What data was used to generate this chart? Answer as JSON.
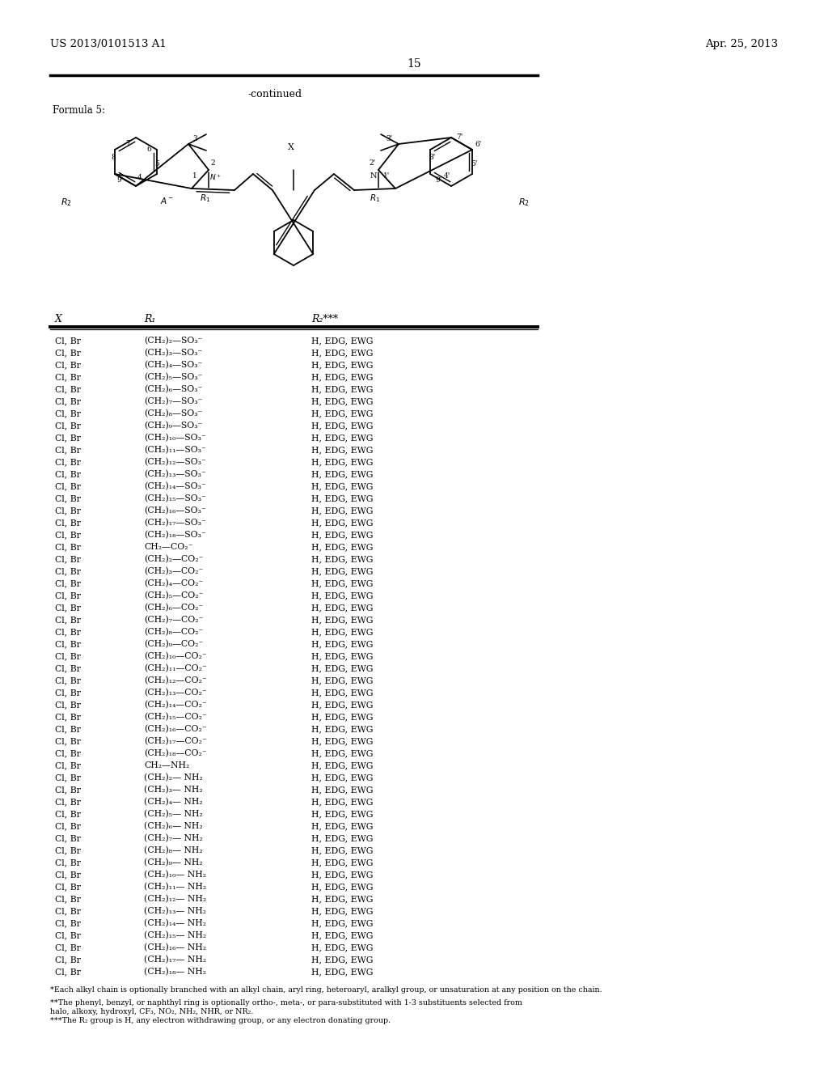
{
  "background_color": "#ffffff",
  "header_left": "US 2013/0101513 A1",
  "header_right": "Apr. 25, 2013",
  "page_number": "15",
  "continued_text": "-continued",
  "formula_label": "Formula 5:",
  "table_headers": [
    "X",
    "R₁",
    "R₂***"
  ],
  "table_rows": [
    [
      "Cl, Br",
      "(CH₂)₂—SO₃⁻",
      "H, EDG, EWG"
    ],
    [
      "Cl, Br",
      "(CH₂)₃—SO₃⁻",
      "H, EDG, EWG"
    ],
    [
      "Cl, Br",
      "(CH₂)₄—SO₃⁻",
      "H, EDG, EWG"
    ],
    [
      "Cl, Br",
      "(CH₂)₅—SO₃⁻",
      "H, EDG, EWG"
    ],
    [
      "Cl, Br",
      "(CH₂)₆—SO₃⁻",
      "H, EDG, EWG"
    ],
    [
      "Cl, Br",
      "(CH₂)₇—SO₃⁻",
      "H, EDG, EWG"
    ],
    [
      "Cl, Br",
      "(CH₂)₈—SO₃⁻",
      "H, EDG, EWG"
    ],
    [
      "Cl, Br",
      "(CH₂)₉—SO₃⁻",
      "H, EDG, EWG"
    ],
    [
      "Cl, Br",
      "(CH₂)₁₀—SO₃⁻",
      "H, EDG, EWG"
    ],
    [
      "Cl, Br",
      "(CH₂)₁₁—SO₃⁻",
      "H, EDG, EWG"
    ],
    [
      "Cl, Br",
      "(CH₂)₁₂—SO₃⁻",
      "H, EDG, EWG"
    ],
    [
      "Cl, Br",
      "(CH₂)₁₃—SO₃⁻",
      "H, EDG, EWG"
    ],
    [
      "Cl, Br",
      "(CH₂)₁₄—SO₃⁻",
      "H, EDG, EWG"
    ],
    [
      "Cl, Br",
      "(CH₂)₁₅—SO₃⁻",
      "H, EDG, EWG"
    ],
    [
      "Cl, Br",
      "(CH₂)₁₆—SO₃⁻",
      "H, EDG, EWG"
    ],
    [
      "Cl, Br",
      "(CH₂)₁₇—SO₃⁻",
      "H, EDG, EWG"
    ],
    [
      "Cl, Br",
      "(CH₂)₁₈—SO₃⁻",
      "H, EDG, EWG"
    ],
    [
      "Cl, Br",
      "CH₂—CO₂⁻",
      "H, EDG, EWG"
    ],
    [
      "Cl, Br",
      "(CH₂)₂—CO₂⁻",
      "H, EDG, EWG"
    ],
    [
      "Cl, Br",
      "(CH₂)₃—CO₂⁻",
      "H, EDG, EWG"
    ],
    [
      "Cl, Br",
      "(CH₂)₄—CO₂⁻",
      "H, EDG, EWG"
    ],
    [
      "Cl, Br",
      "(CH₂)₅—CO₂⁻",
      "H, EDG, EWG"
    ],
    [
      "Cl, Br",
      "(CH₂)₆—CO₂⁻",
      "H, EDG, EWG"
    ],
    [
      "Cl, Br",
      "(CH₂)₇—CO₂⁻",
      "H, EDG, EWG"
    ],
    [
      "Cl, Br",
      "(CH₂)₈—CO₂⁻",
      "H, EDG, EWG"
    ],
    [
      "Cl, Br",
      "(CH₂)₉—CO₂⁻",
      "H, EDG, EWG"
    ],
    [
      "Cl, Br",
      "(CH₂)₁₀—CO₂⁻",
      "H, EDG, EWG"
    ],
    [
      "Cl, Br",
      "(CH₂)₁₁—CO₂⁻",
      "H, EDG, EWG"
    ],
    [
      "Cl, Br",
      "(CH₂)₁₂—CO₂⁻",
      "H, EDG, EWG"
    ],
    [
      "Cl, Br",
      "(CH₂)₁₃—CO₂⁻",
      "H, EDG, EWG"
    ],
    [
      "Cl, Br",
      "(CH₂)₁₄—CO₂⁻",
      "H, EDG, EWG"
    ],
    [
      "Cl, Br",
      "(CH₂)₁₅—CO₂⁻",
      "H, EDG, EWG"
    ],
    [
      "Cl, Br",
      "(CH₂)₁₆—CO₂⁻",
      "H, EDG, EWG"
    ],
    [
      "Cl, Br",
      "(CH₂)₁₇—CO₂⁻",
      "H, EDG, EWG"
    ],
    [
      "Cl, Br",
      "(CH₂)₁₈—CO₂⁻",
      "H, EDG, EWG"
    ],
    [
      "Cl, Br",
      "CH₂—NH₂",
      "H, EDG, EWG"
    ],
    [
      "Cl, Br",
      "(CH₂)₂— NH₂",
      "H, EDG, EWG"
    ],
    [
      "Cl, Br",
      "(CH₂)₃— NH₂",
      "H, EDG, EWG"
    ],
    [
      "Cl, Br",
      "(CH₂)₄— NH₂",
      "H, EDG, EWG"
    ],
    [
      "Cl, Br",
      "(CH₂)₅— NH₂",
      "H, EDG, EWG"
    ],
    [
      "Cl, Br",
      "(CH₂)₆— NH₂",
      "H, EDG, EWG"
    ],
    [
      "Cl, Br",
      "(CH₂)₇— NH₂",
      "H, EDG, EWG"
    ],
    [
      "Cl, Br",
      "(CH₂)₈— NH₂",
      "H, EDG, EWG"
    ],
    [
      "Cl, Br",
      "(CH₂)₉— NH₂",
      "H, EDG, EWG"
    ],
    [
      "Cl, Br",
      "(CH₂)₁₀— NH₂",
      "H, EDG, EWG"
    ],
    [
      "Cl, Br",
      "(CH₂)₁₁— NH₂",
      "H, EDG, EWG"
    ],
    [
      "Cl, Br",
      "(CH₂)₁₂— NH₂",
      "H, EDG, EWG"
    ],
    [
      "Cl, Br",
      "(CH₂)₁₃— NH₂",
      "H, EDG, EWG"
    ],
    [
      "Cl, Br",
      "(CH₂)₁₄— NH₂",
      "H, EDG, EWG"
    ],
    [
      "Cl, Br",
      "(CH₂)₁₅— NH₂",
      "H, EDG, EWG"
    ],
    [
      "Cl, Br",
      "(CH₂)₁₆— NH₂",
      "H, EDG, EWG"
    ],
    [
      "Cl, Br",
      "(CH₂)₁₇— NH₂",
      "H, EDG, EWG"
    ],
    [
      "Cl, Br",
      "(CH₂)₁₈— NH₂",
      "H, EDG, EWG"
    ]
  ],
  "footnote1": "*Each alkyl chain is optionally branched with an alkyl chain, aryl ring, heteroaryl, aralkyl group, or unsaturation at any position on the chain.",
  "footnote2a": "**The phenyl, benzyl, or naphthyl ring is optionally ortho-, meta-, or para-substituted with 1-3 substituents selected from",
  "footnote2b": "halo, alkoxy, hydroxyl, CF₃, NO₂, NH₂, NHR, or NR₂.",
  "footnote3": "***The R₂ group is H, any electron withdrawing group, or any electron donating group."
}
